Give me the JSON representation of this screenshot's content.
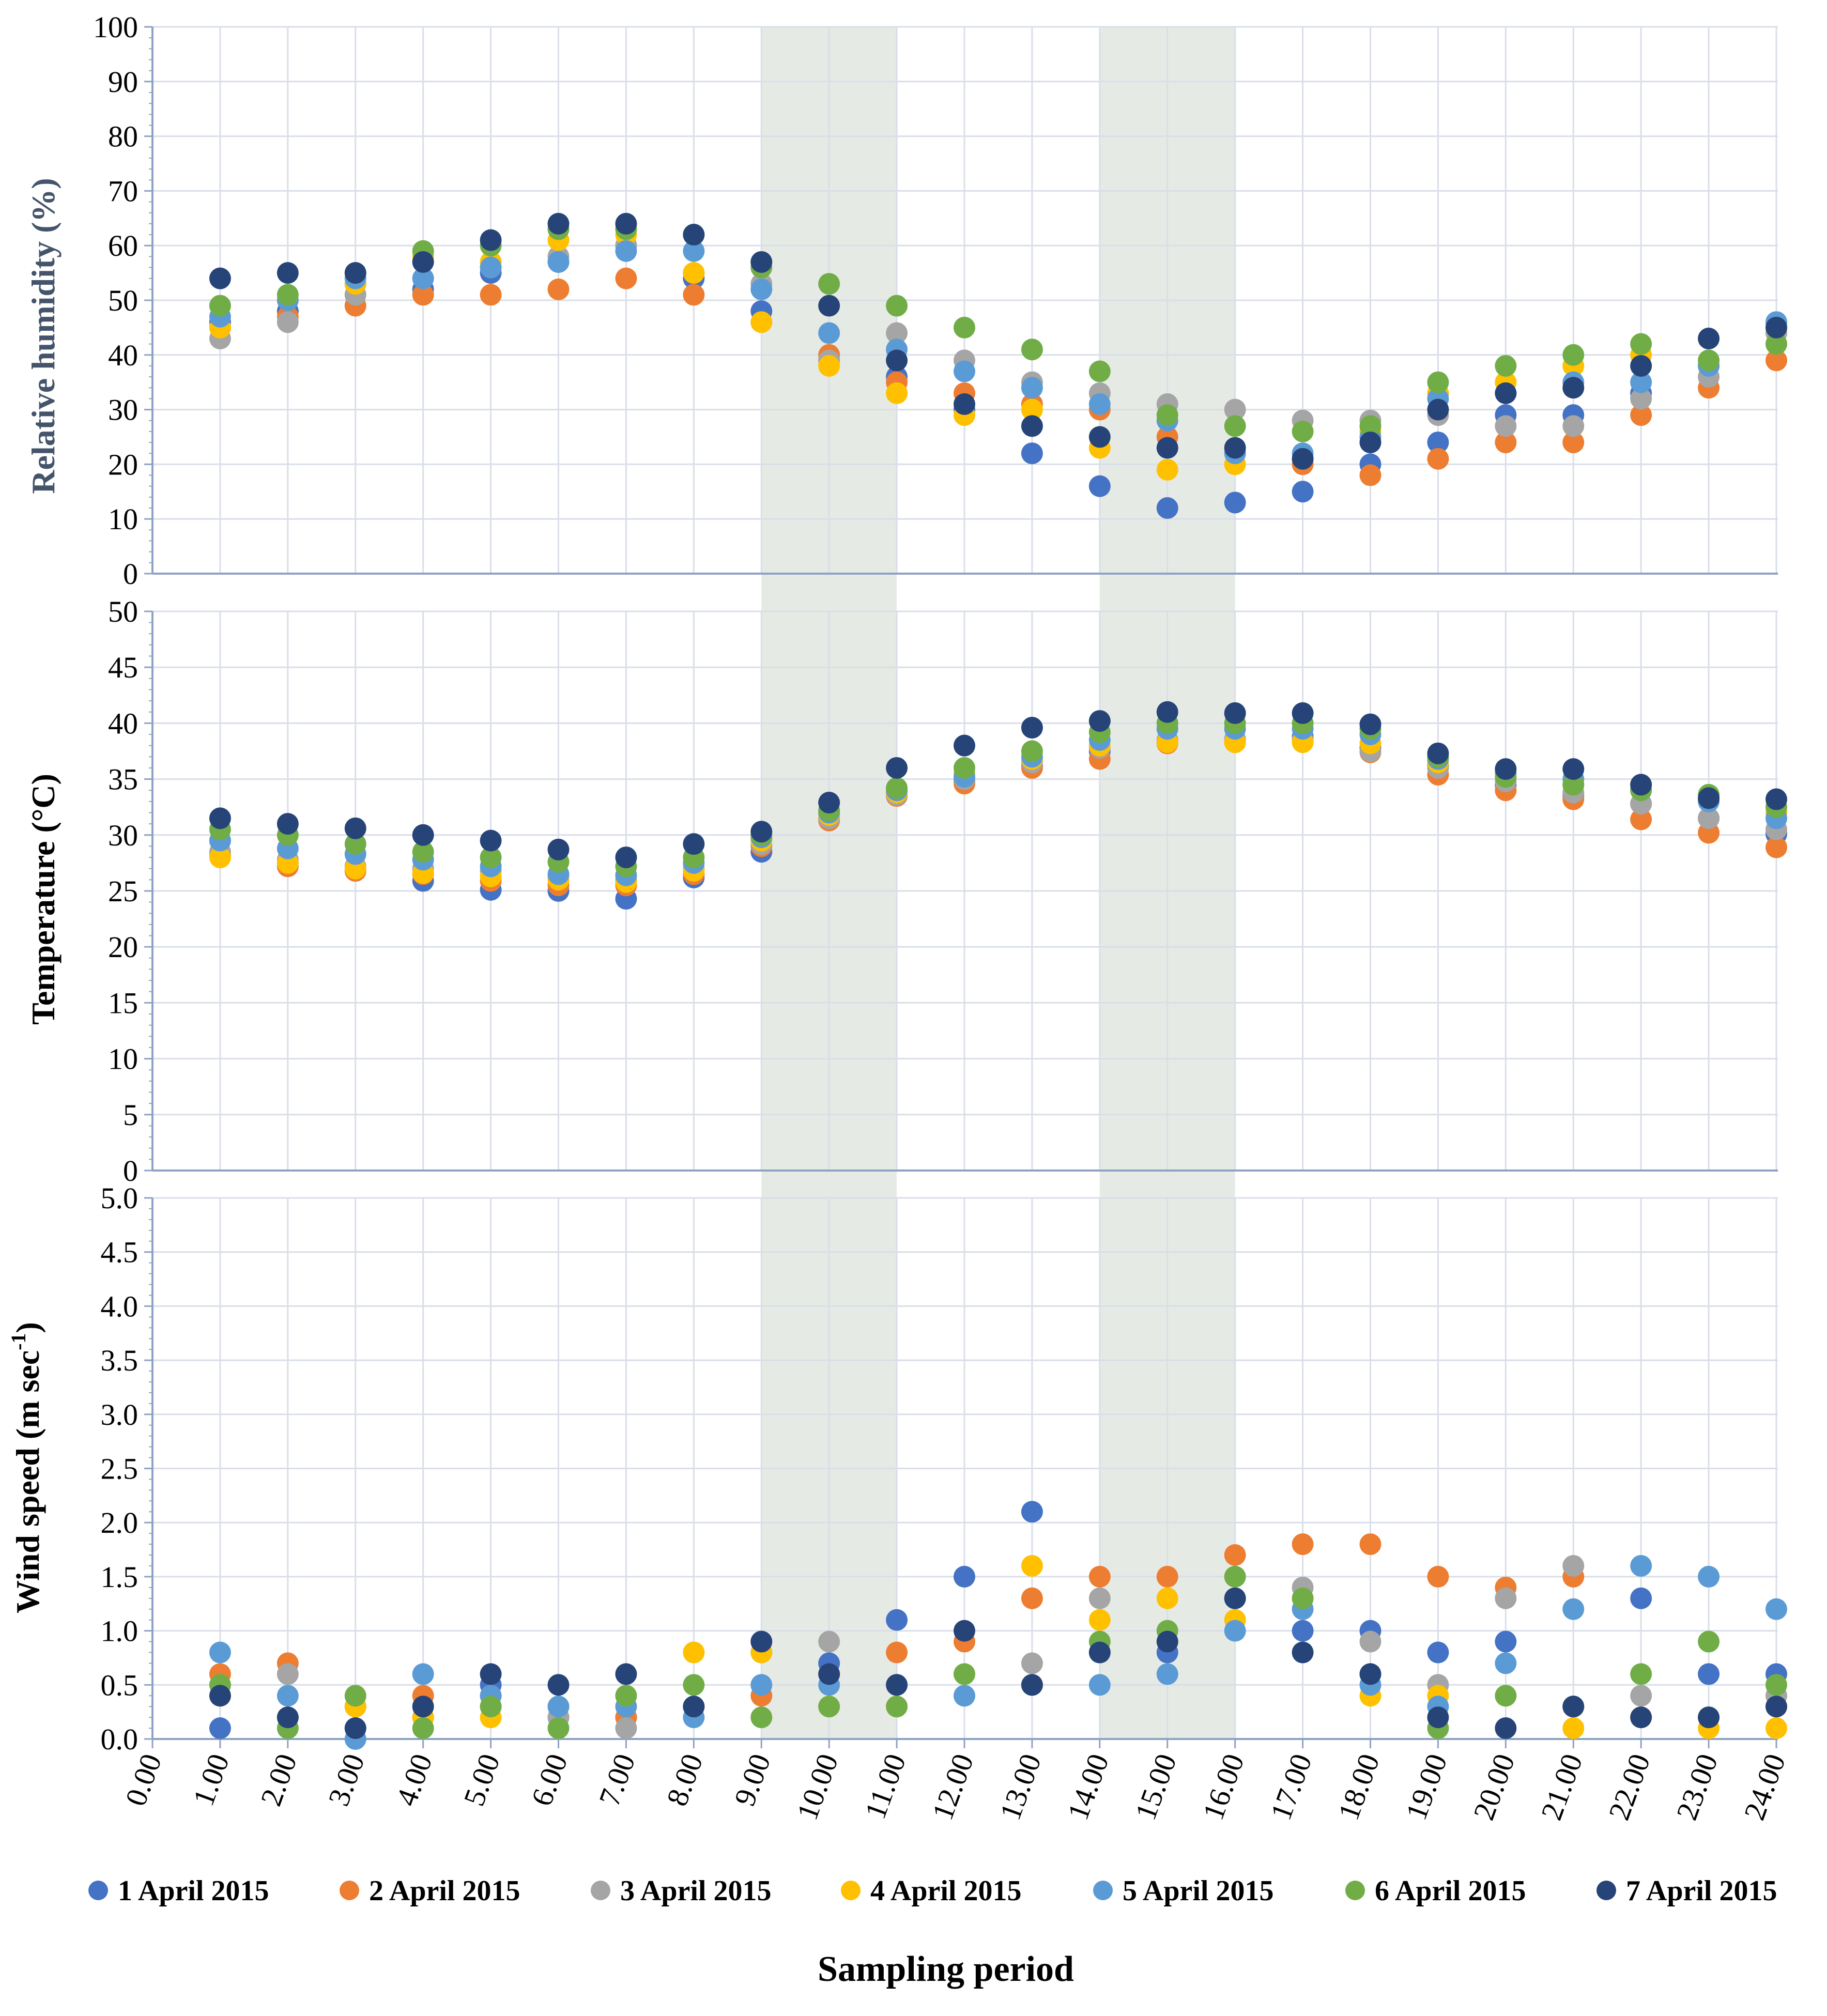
{
  "chart_data": {
    "type": "scatter",
    "x_label": "Sampling period",
    "x_ticks": [
      "0.00",
      "1.00",
      "2.00",
      "3.00",
      "4.00",
      "5.00",
      "6.00",
      "7.00",
      "8.00",
      "9.00",
      "10.00",
      "11.00",
      "12.00",
      "13.00",
      "14.00",
      "15.00",
      "16.00",
      "17.00",
      "18.00",
      "19.00",
      "20.00",
      "21.00",
      "22.00",
      "23.00",
      "24.00"
    ],
    "shaded_periods": [
      [
        9,
        11
      ],
      [
        14,
        16
      ]
    ],
    "legend": [
      {
        "name": "1 April 2015",
        "color": "#4472C4"
      },
      {
        "name": "2 April 2015",
        "color": "#ED7D31"
      },
      {
        "name": "3 April 2015",
        "color": "#A5A5A5"
      },
      {
        "name": "4 April 2015",
        "color": "#FFC000"
      },
      {
        "name": "5 April 2015",
        "color": "#5B9BD5"
      },
      {
        "name": "6 April 2015",
        "color": "#70AD47"
      },
      {
        "name": "7 April 2015",
        "color": "#264478"
      }
    ],
    "panels": [
      {
        "id": "humidity",
        "ylabel": "Relative humidity  (%)",
        "ylabel_color": "#44546A",
        "ylim": [
          0,
          100
        ],
        "y_ticks": [
          "0",
          "10",
          "20",
          "30",
          "40",
          "50",
          "60",
          "70",
          "80",
          "90",
          "100"
        ],
        "series": [
          [
            46,
            48,
            53,
            52,
            55,
            57,
            60,
            54,
            48,
            39,
            36,
            30,
            22,
            16,
            12,
            13,
            15,
            20,
            24,
            29,
            29,
            33,
            38,
            46
          ],
          [
            45,
            47,
            49,
            51,
            51,
            52,
            54,
            51,
            46,
            40,
            35,
            33,
            31,
            30,
            25,
            22,
            20,
            18,
            21,
            24,
            24,
            29,
            34,
            39
          ],
          [
            43,
            46,
            51,
            54,
            56,
            58,
            60,
            55,
            53,
            39,
            44,
            39,
            35,
            33,
            31,
            30,
            28,
            28,
            29,
            27,
            27,
            32,
            36,
            44
          ],
          [
            45,
            50,
            53,
            58,
            57,
            61,
            62,
            55,
            46,
            38,
            33,
            29,
            30,
            23,
            19,
            20,
            21,
            26,
            33,
            35,
            38,
            40,
            38,
            42
          ],
          [
            47,
            50,
            54,
            54,
            56,
            57,
            59,
            59,
            52,
            44,
            41,
            37,
            34,
            31,
            28,
            22,
            22,
            25,
            32,
            33,
            35,
            35,
            38,
            46
          ],
          [
            49,
            51,
            55,
            59,
            60,
            63,
            63,
            62,
            56,
            53,
            49,
            45,
            41,
            37,
            29,
            27,
            26,
            27,
            35,
            38,
            40,
            42,
            39,
            42
          ],
          [
            54,
            55,
            55,
            57,
            61,
            64,
            64,
            62,
            57,
            49,
            39,
            31,
            27,
            25,
            23,
            23,
            21,
            24,
            30,
            33,
            34,
            38,
            43,
            45
          ]
        ]
      },
      {
        "id": "temperature",
        "ylabel": "Temperature  (°C)",
        "ylabel_color": "#000000",
        "ylim": [
          0,
          50
        ],
        "y_ticks": [
          "0",
          "5",
          "10",
          "15",
          "20",
          "25",
          "30",
          "35",
          "40",
          "45",
          "50"
        ],
        "series": [
          [
            29.5,
            27.5,
            26.8,
            25.9,
            25.1,
            25.0,
            24.3,
            26.2,
            28.5,
            31.5,
            33.5,
            34.8,
            36.2,
            37.5,
            38.5,
            38.5,
            38.8,
            37.8,
            36.2,
            34.5,
            33.5,
            32.8,
            31.5,
            30.1
          ],
          [
            28.2,
            27.2,
            26.8,
            26.5,
            25.9,
            25.5,
            25.5,
            26.5,
            29.0,
            31.3,
            33.5,
            34.6,
            36.0,
            36.8,
            38.2,
            38.3,
            38.5,
            37.4,
            35.4,
            34.0,
            33.2,
            31.4,
            30.2,
            28.9
          ],
          [
            28.5,
            27.8,
            27.2,
            27.0,
            26.8,
            26.2,
            26.0,
            27.0,
            29.2,
            31.5,
            33.6,
            35.0,
            36.5,
            37.8,
            38.5,
            38.6,
            38.5,
            37.5,
            36.0,
            34.8,
            33.8,
            32.8,
            31.5,
            30.5
          ],
          [
            28.0,
            27.5,
            27.0,
            26.6,
            26.3,
            26.0,
            25.8,
            26.8,
            29.5,
            31.8,
            33.8,
            35.5,
            36.8,
            38.0,
            38.3,
            38.3,
            38.3,
            38.2,
            36.5,
            35.5,
            34.5,
            34.5,
            33.2,
            32.0
          ],
          [
            29.5,
            28.8,
            28.3,
            27.8,
            27.2,
            26.5,
            26.4,
            27.5,
            29.8,
            32.0,
            34.0,
            35.2,
            37.0,
            38.5,
            39.5,
            39.5,
            39.5,
            39.0,
            36.8,
            35.5,
            35.0,
            34.0,
            33.0,
            31.5
          ],
          [
            30.5,
            30.0,
            29.2,
            28.5,
            28.0,
            27.6,
            27.2,
            28.0,
            30.0,
            32.2,
            34.2,
            36.0,
            37.5,
            39.2,
            40.0,
            40.0,
            40.0,
            39.5,
            37.0,
            35.2,
            34.5,
            34.0,
            33.6,
            32.5
          ],
          [
            31.5,
            31.0,
            30.6,
            30.0,
            29.5,
            28.7,
            28.0,
            29.2,
            30.3,
            32.9,
            36.0,
            38.0,
            39.6,
            40.2,
            41.0,
            40.9,
            40.9,
            39.9,
            37.3,
            35.9,
            35.9,
            34.5,
            33.3,
            33.2
          ]
        ]
      },
      {
        "id": "wind",
        "ylabel": "Wind speed (m sec",
        "ylabel_sup": "-1",
        "ylabel_tail": ")",
        "ylabel_color": "#000000",
        "ylim": [
          0,
          5.0
        ],
        "y_ticks": [
          "0.0",
          "0.5",
          "1.0",
          "1.5",
          "2.0",
          "2.5",
          "3.0",
          "3.5",
          "4.0",
          "4.5",
          "5.0"
        ],
        "series": [
          [
            0.1,
            0.2,
            0.1,
            0.2,
            0.5,
            0.2,
            0.2,
            0.3,
            0.8,
            0.7,
            1.1,
            1.5,
            2.1,
            0.8,
            0.8,
            1.3,
            1.0,
            1.0,
            0.8,
            0.9,
            0.3,
            1.3,
            0.6,
            0.6
          ],
          [
            0.6,
            0.7,
            0.3,
            0.4,
            0.4,
            0.3,
            0.2,
            0.3,
            0.4,
            0.6,
            0.8,
            0.9,
            1.3,
            1.5,
            1.5,
            1.7,
            1.8,
            1.8,
            1.5,
            1.4,
            1.5,
            0.2,
            0.2,
            0.3
          ],
          [
            0.5,
            0.6,
            0.3,
            0.2,
            0.3,
            0.2,
            0.1,
            0.3,
            0.9,
            0.9,
            0.5,
            0.4,
            0.7,
            1.3,
            0.9,
            1.3,
            1.4,
            0.9,
            0.5,
            1.3,
            1.6,
            0.4,
            0.2,
            0.4
          ],
          [
            0.4,
            0.2,
            0.3,
            0.2,
            0.2,
            0.3,
            0.4,
            0.8,
            0.8,
            0.3,
            0.3,
            0.6,
            1.6,
            1.1,
            1.3,
            1.1,
            1.3,
            0.4,
            0.4,
            0.4,
            0.1,
            0.2,
            0.1,
            0.1
          ],
          [
            0.8,
            0.4,
            0.0,
            0.6,
            0.4,
            0.3,
            0.3,
            0.2,
            0.5,
            0.5,
            0.5,
            0.4,
            0.5,
            0.5,
            0.6,
            1.0,
            1.2,
            0.5,
            0.3,
            0.7,
            1.2,
            1.6,
            1.5,
            1.2
          ],
          [
            0.5,
            0.1,
            0.4,
            0.1,
            0.3,
            0.1,
            0.4,
            0.5,
            0.2,
            0.3,
            0.3,
            0.6,
            0.5,
            0.9,
            1.0,
            1.5,
            1.3,
            0.6,
            0.1,
            0.4,
            0.3,
            0.6,
            0.9,
            0.5
          ],
          [
            0.4,
            0.2,
            0.1,
            0.3,
            0.6,
            0.5,
            0.6,
            0.3,
            0.9,
            0.6,
            0.5,
            1.0,
            0.5,
            0.8,
            0.9,
            1.3,
            0.8,
            0.6,
            0.2,
            0.1,
            0.3,
            0.2,
            0.2,
            0.3
          ]
        ]
      }
    ]
  }
}
